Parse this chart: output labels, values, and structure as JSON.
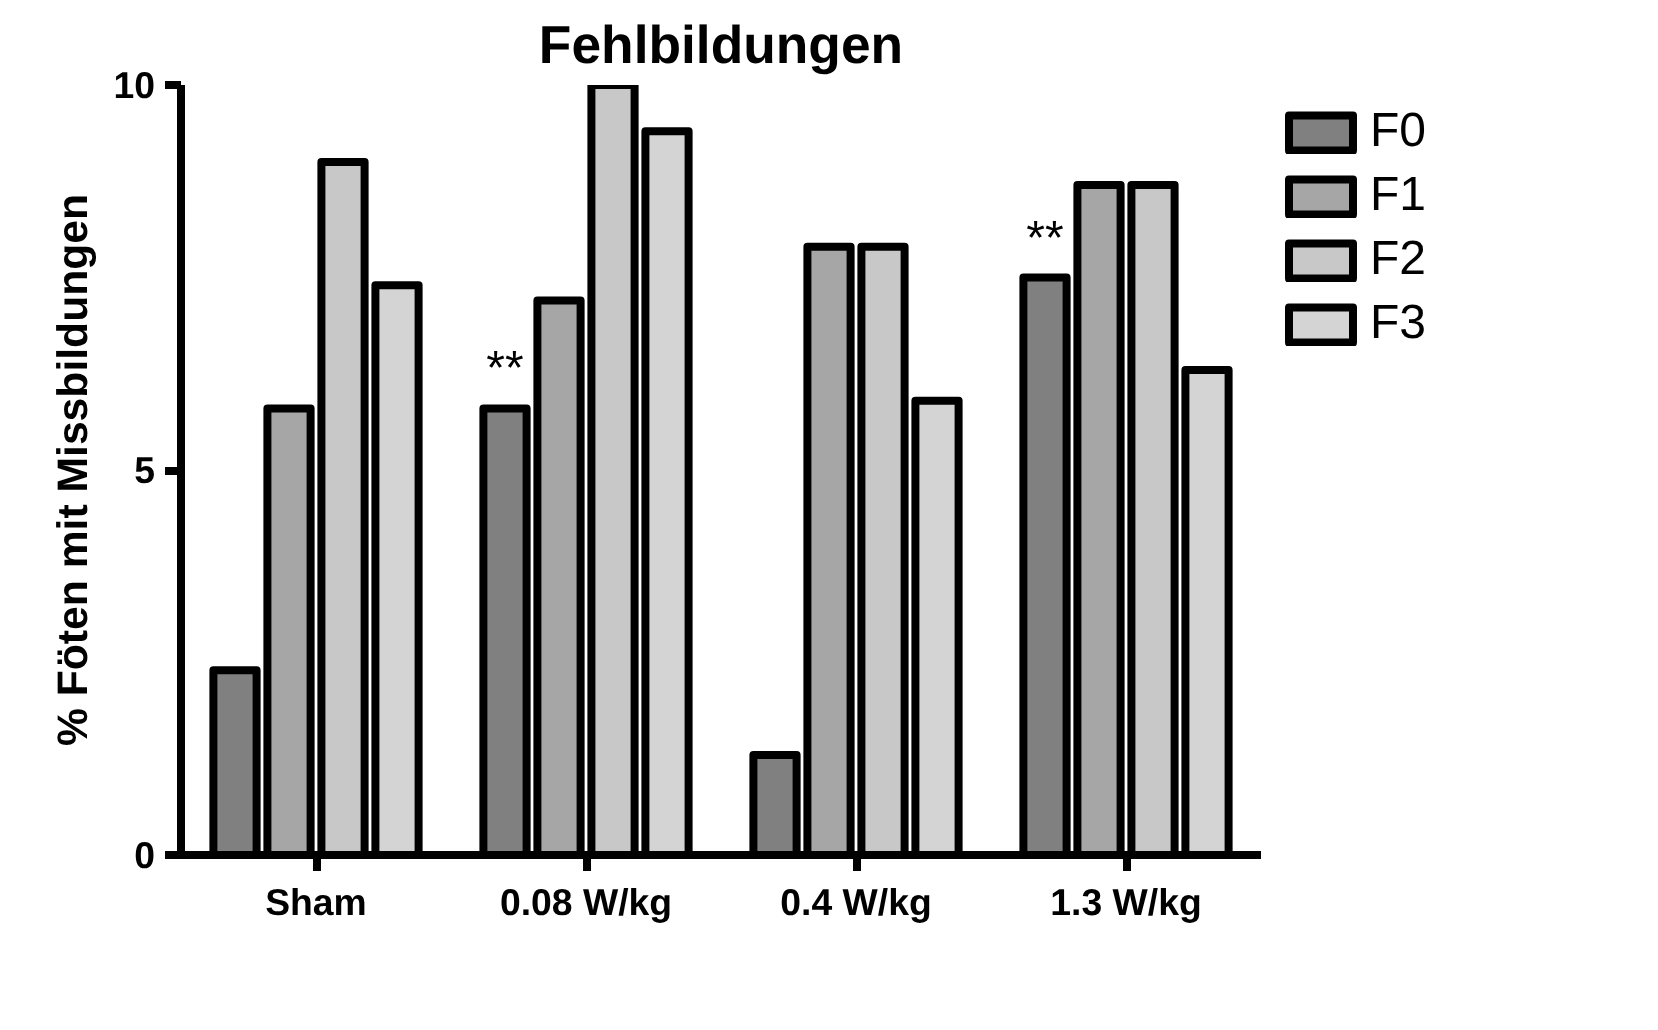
{
  "chart_data": {
    "type": "bar",
    "title": "Fehlbildungen",
    "ylabel": "% Föten mit Missbildungen",
    "categories": [
      "Sham",
      "0.08 W/kg",
      "0.4 W/kg",
      "1.3 W/kg"
    ],
    "series": [
      {
        "name": "F0",
        "color": "#808080",
        "values": [
          2.4,
          5.8,
          1.3,
          7.5
        ]
      },
      {
        "name": "F1",
        "color": "#a6a6a6",
        "values": [
          5.8,
          7.2,
          7.9,
          8.7
        ]
      },
      {
        "name": "F2",
        "color": "#c8c8c8",
        "values": [
          9.0,
          10.0,
          7.9,
          8.7
        ]
      },
      {
        "name": "F3",
        "color": "#d4d4d4",
        "values": [
          7.4,
          9.4,
          5.9,
          6.3
        ]
      }
    ],
    "ylim": [
      0,
      10
    ],
    "yticks": [
      0,
      5,
      10
    ],
    "annotations": [
      {
        "text": "**",
        "x": "0.08 W/kg",
        "y": 5.8
      },
      {
        "text": "**",
        "x": "1.3 W/kg",
        "y": 7.5
      }
    ],
    "grid": false,
    "legend": "right"
  }
}
